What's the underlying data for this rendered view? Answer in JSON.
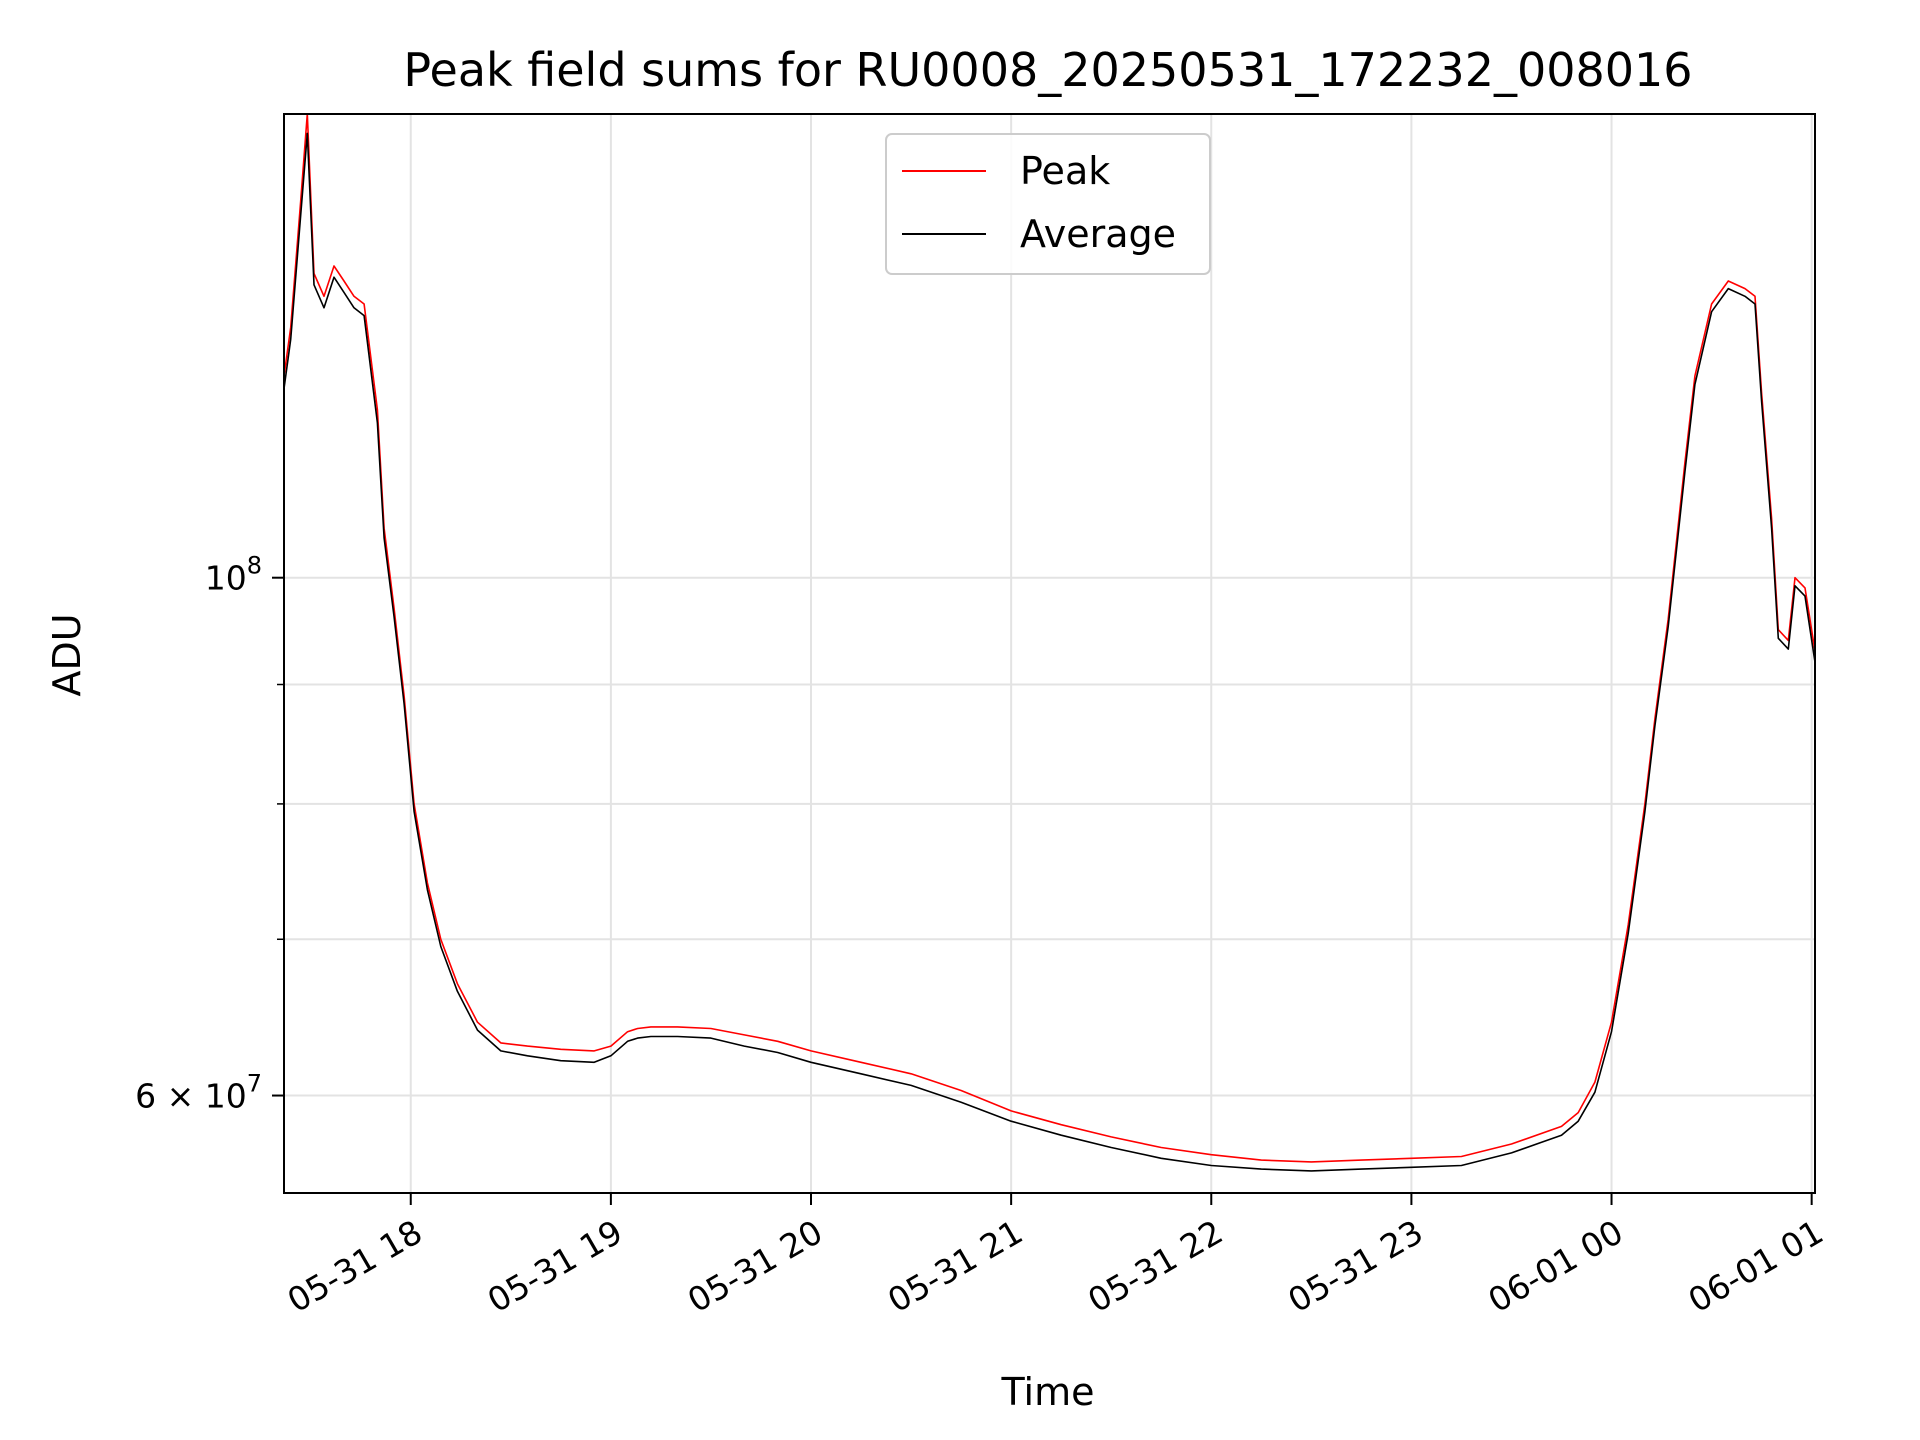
{
  "chart_data": {
    "type": "line",
    "title": "Peak field sums for RU0008_20250531_172232_008016",
    "xlabel": "Time",
    "ylabel": "ADU",
    "y_scale": "log",
    "grid": true,
    "legend_position": "top-center",
    "x_range": [
      "05-31 17:22",
      "06-01 01:01"
    ],
    "ylim": [
      54500000,
      158000000
    ],
    "x_ticks": [
      "05-31 18",
      "05-31 19",
      "05-31 20",
      "05-31 21",
      "05-31 22",
      "05-31 23",
      "06-01 00",
      "06-01 01"
    ],
    "y_ticks": [
      {
        "label": "10",
        "exponent": "8",
        "value": 100000000
      },
      {
        "label": "6 × 10",
        "exponent": "7",
        "value": 60000000
      }
    ],
    "series": [
      {
        "name": "Peak",
        "color": "#ff0000",
        "x": [
          "05-31 17:22",
          "05-31 17:24",
          "05-31 17:27",
          "05-31 17:29",
          "05-31 17:31",
          "05-31 17:34",
          "05-31 17:37",
          "05-31 17:40",
          "05-31 17:43",
          "05-31 17:46",
          "05-31 17:50",
          "05-31 17:52",
          "05-31 17:55",
          "05-31 17:58",
          "05-31 18:01",
          "05-31 18:05",
          "05-31 18:09",
          "05-31 18:14",
          "05-31 18:20",
          "05-31 18:27",
          "05-31 18:35",
          "05-31 18:45",
          "05-31 18:55",
          "05-31 19:00",
          "05-31 19:05",
          "05-31 19:08",
          "05-31 19:12",
          "05-31 19:20",
          "05-31 19:30",
          "05-31 19:40",
          "05-31 19:50",
          "05-31 20:00",
          "05-31 20:15",
          "05-31 20:30",
          "05-31 20:45",
          "05-31 21:00",
          "05-31 21:15",
          "05-31 21:30",
          "05-31 21:45",
          "05-31 22:00",
          "05-31 22:15",
          "05-31 22:30",
          "05-31 22:45",
          "05-31 23:00",
          "05-31 23:15",
          "05-31 23:30",
          "05-31 23:45",
          "05-31 23:50",
          "05-31 23:55",
          "06-01 00:00",
          "06-01 00:05",
          "06-01 00:10",
          "06-01 00:13",
          "06-01 00:17",
          "06-01 00:22",
          "06-01 00:25",
          "06-01 00:30",
          "06-01 00:35",
          "06-01 00:40",
          "06-01 00:43",
          "06-01 00:45",
          "06-01 00:48",
          "06-01 00:50",
          "06-01 00:53",
          "06-01 00:55",
          "06-01 00:58",
          "06-01 01:01"
        ],
        "y": [
          122000000,
          128000000,
          145000000,
          158000000,
          135000000,
          132000000,
          136000000,
          134000000,
          132000000,
          131000000,
          118000000,
          105000000,
          97000000,
          89000000,
          80000000,
          74000000,
          70000000,
          67000000,
          64500000,
          63200000,
          63000000,
          62800000,
          62700000,
          63000000,
          63900000,
          64100000,
          64200000,
          64200000,
          64100000,
          63700000,
          63300000,
          62700000,
          62000000,
          61300000,
          60300000,
          59100000,
          58300000,
          57600000,
          57000000,
          56600000,
          56300000,
          56200000,
          56300000,
          56400000,
          56500000,
          57200000,
          58200000,
          59000000,
          60800000,
          64500000,
          71000000,
          80000000,
          87000000,
          96000000,
          112000000,
          122000000,
          131000000,
          134000000,
          133000000,
          132000000,
          120000000,
          106000000,
          95000000,
          94000000,
          100000000,
          99000000,
          93000000
        ]
      },
      {
        "name": "Average",
        "color": "#000000",
        "x": [
          "05-31 17:22",
          "05-31 17:24",
          "05-31 17:27",
          "05-31 17:29",
          "05-31 17:31",
          "05-31 17:34",
          "05-31 17:37",
          "05-31 17:40",
          "05-31 17:43",
          "05-31 17:46",
          "05-31 17:50",
          "05-31 17:52",
          "05-31 17:55",
          "05-31 17:58",
          "05-31 18:01",
          "05-31 18:05",
          "05-31 18:09",
          "05-31 18:14",
          "05-31 18:20",
          "05-31 18:27",
          "05-31 18:35",
          "05-31 18:45",
          "05-31 18:55",
          "05-31 19:00",
          "05-31 19:05",
          "05-31 19:08",
          "05-31 19:12",
          "05-31 19:20",
          "05-31 19:30",
          "05-31 19:40",
          "05-31 19:50",
          "05-31 20:00",
          "05-31 20:15",
          "05-31 20:30",
          "05-31 20:45",
          "05-31 21:00",
          "05-31 21:15",
          "05-31 21:30",
          "05-31 21:45",
          "05-31 22:00",
          "05-31 22:15",
          "05-31 22:30",
          "05-31 22:45",
          "05-31 23:00",
          "05-31 23:15",
          "05-31 23:30",
          "05-31 23:45",
          "05-31 23:50",
          "05-31 23:55",
          "06-01 00:00",
          "06-01 00:05",
          "06-01 00:10",
          "06-01 00:13",
          "06-01 00:17",
          "06-01 00:22",
          "06-01 00:25",
          "06-01 00:30",
          "06-01 00:35",
          "06-01 00:40",
          "06-01 00:43",
          "06-01 00:45",
          "06-01 00:48",
          "06-01 00:50",
          "06-01 00:53",
          "06-01 00:55",
          "06-01 00:58",
          "06-01 01:01"
        ],
        "y": [
          120500000,
          126500000,
          143000000,
          155000000,
          133500000,
          130500000,
          134500000,
          132500000,
          130500000,
          129500000,
          116500000,
          104000000,
          96200000,
          88300000,
          79400000,
          73500000,
          69500000,
          66500000,
          64000000,
          62700000,
          62400000,
          62100000,
          62000000,
          62400000,
          63300000,
          63500000,
          63600000,
          63600000,
          63500000,
          63000000,
          62600000,
          62000000,
          61300000,
          60600000,
          59600000,
          58500000,
          57700000,
          57000000,
          56400000,
          56000000,
          55800000,
          55700000,
          55800000,
          55900000,
          56000000,
          56700000,
          57700000,
          58500000,
          60200000,
          63900000,
          70400000,
          79400000,
          86400000,
          95300000,
          111000000,
          121000000,
          130000000,
          133000000,
          132000000,
          131000000,
          119000000,
          105000000,
          94200000,
          93200000,
          99200000,
          98200000,
          92000000
        ]
      }
    ]
  }
}
